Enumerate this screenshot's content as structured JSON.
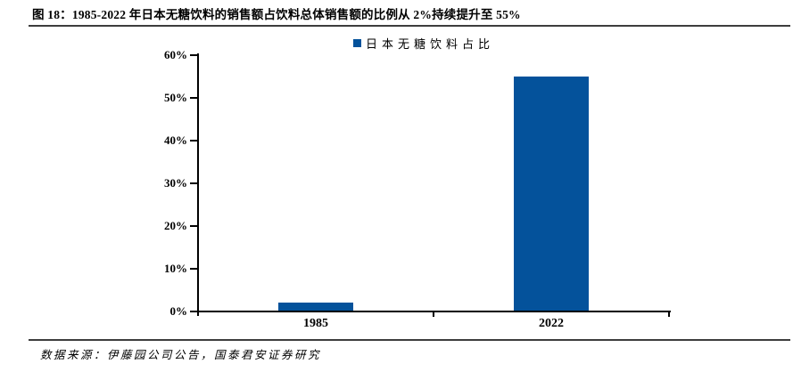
{
  "figure": {
    "title": "图 18：1985-2022 年日本无糖饮料的销售额占饮料总体销售额的比例从 2%持续提升至 55%",
    "source": "数据来源：伊藤园公司公告，国泰君安证券研究"
  },
  "legend": {
    "label": "日本无糖饮料占比",
    "marker_color": "#04529B"
  },
  "colors": {
    "bar": "#04529B",
    "axis": "#000000",
    "rule": "#3d3d3d",
    "text": "#000000"
  },
  "chart_data": {
    "type": "bar",
    "title": "图 18：1985-2022 年日本无糖饮料的销售额占饮料总体销售额的比例从 2%持续提升至 55%",
    "categories": [
      "1985",
      "2022"
    ],
    "series": [
      {
        "name": "日本无糖饮料占比",
        "values": [
          2,
          55
        ]
      }
    ],
    "xlabel": "",
    "ylabel": "",
    "ylim": [
      0,
      60
    ],
    "ytick_step": 10,
    "ytick_suffix": "%",
    "grid": false,
    "legend_position": "top-center",
    "bar_color": "#04529B"
  }
}
